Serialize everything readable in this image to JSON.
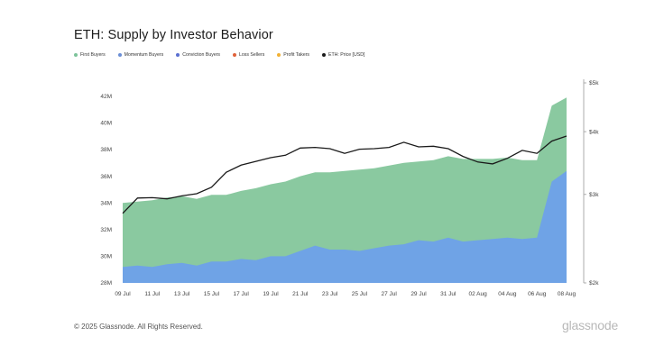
{
  "title": "ETH: Supply by Investor Behavior",
  "legend": [
    {
      "label": "First Buyers",
      "color": "#7cc39a",
      "kind": "dot"
    },
    {
      "label": "Momentum Buyers",
      "color": "#6b8fd6",
      "kind": "dot"
    },
    {
      "label": "Conviction Buyers",
      "color": "#5a6fd1",
      "kind": "dot"
    },
    {
      "label": "Loss Sellers",
      "color": "#e0623a",
      "kind": "dot"
    },
    {
      "label": "Profit Takers",
      "color": "#f2b134",
      "kind": "dot"
    },
    {
      "label": "ETH: Price [USD]",
      "color": "#1a1a1a",
      "kind": "dot"
    }
  ],
  "footer": {
    "copyright": "© 2025 Glassnode. All Rights Reserved.",
    "watermark": "glassnode",
    "brand": "glassnode"
  },
  "chart_data": {
    "type": "area",
    "x": [
      "09 Jul",
      "10 Jul",
      "11 Jul",
      "12 Jul",
      "13 Jul",
      "14 Jul",
      "15 Jul",
      "16 Jul",
      "17 Jul",
      "18 Jul",
      "19 Jul",
      "20 Jul",
      "21 Jul",
      "22 Jul",
      "23 Jul",
      "24 Jul",
      "25 Jul",
      "26 Jul",
      "27 Jul",
      "28 Jul",
      "29 Jul",
      "30 Jul",
      "31 Jul",
      "01 Aug",
      "02 Aug",
      "03 Aug",
      "04 Aug",
      "05 Aug",
      "06 Aug",
      "07 Aug",
      "08 Aug"
    ],
    "x_tick_labels": [
      "09 Jul",
      "11 Jul",
      "13 Jul",
      "15 Jul",
      "17 Jul",
      "19 Jul",
      "21 Jul",
      "23 Jul",
      "25 Jul",
      "27 Jul",
      "29 Jul",
      "31 Jul",
      "02 Aug",
      "04 Aug",
      "06 Aug",
      "08 Aug"
    ],
    "series": [
      {
        "name": "Momentum Buyers",
        "color": "#6fa3e6",
        "values": [
          29.2,
          29.3,
          29.2,
          29.4,
          29.5,
          29.3,
          29.6,
          29.6,
          29.8,
          29.7,
          30.0,
          30.0,
          30.4,
          30.8,
          30.5,
          30.5,
          30.4,
          30.6,
          30.8,
          30.9,
          31.2,
          31.1,
          31.4,
          31.1,
          31.2,
          31.3,
          31.4,
          31.3,
          31.4,
          35.6,
          36.4
        ]
      },
      {
        "name": "First Buyers",
        "color": "#8ac9a0",
        "values": [
          34.0,
          34.1,
          34.2,
          34.4,
          34.5,
          34.3,
          34.6,
          34.6,
          34.9,
          35.1,
          35.4,
          35.6,
          36.0,
          36.3,
          36.3,
          36.4,
          36.5,
          36.6,
          36.8,
          37.0,
          37.1,
          37.2,
          37.5,
          37.3,
          37.3,
          37.3,
          37.4,
          37.2,
          37.2,
          41.3,
          41.9
        ]
      },
      {
        "name": "ETH: Price [USD]",
        "color": "#1a1a1a",
        "axis": "right",
        "values": [
          2750,
          2950,
          2955,
          2940,
          2980,
          3010,
          3100,
          3320,
          3430,
          3490,
          3550,
          3590,
          3710,
          3720,
          3700,
          3620,
          3690,
          3700,
          3720,
          3810,
          3730,
          3740,
          3700,
          3570,
          3480,
          3450,
          3540,
          3670,
          3620,
          3830,
          3920
        ]
      }
    ],
    "y_left": {
      "ticks": [
        "28M",
        "30M",
        "32M",
        "34M",
        "36M",
        "38M",
        "40M",
        "42M"
      ],
      "ylim": [
        28,
        43
      ]
    },
    "y_right": {
      "ticks": [
        "$2k",
        "$3k",
        "$4k",
        "$5k"
      ],
      "scale": "log",
      "ylim": [
        2000,
        5000
      ]
    },
    "grid": false
  }
}
